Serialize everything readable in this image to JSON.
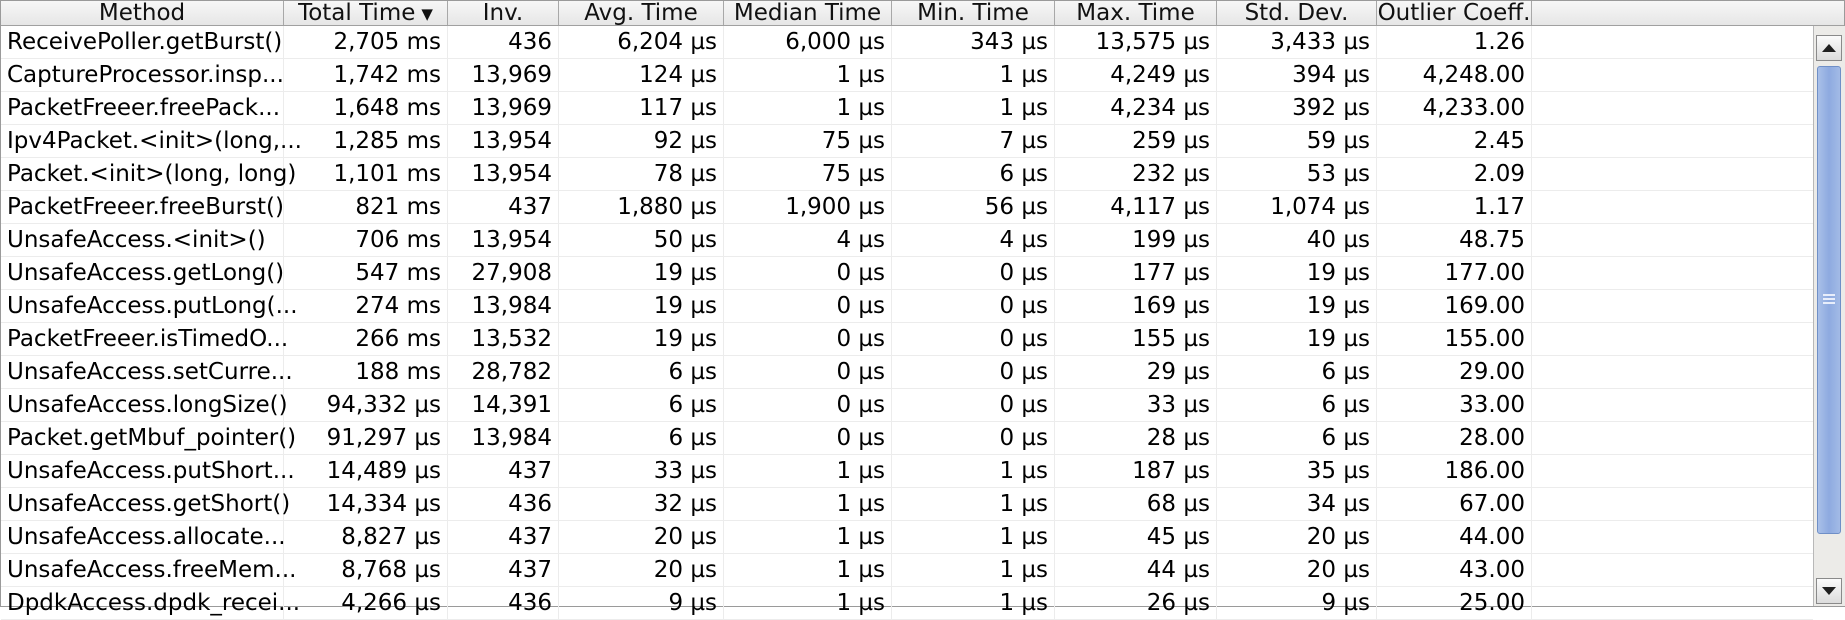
{
  "table": {
    "columns": [
      "Method",
      "Total Time",
      "Inv.",
      "Avg. Time",
      "Median Time",
      "Min. Time",
      "Max. Time",
      "Std. Dev.",
      "Outlier Coeff."
    ],
    "sorted_column": "Total Time",
    "rows": [
      [
        "ReceivePoller.getBurst()",
        "2,705 ms",
        "436",
        "6,204 µs",
        "6,000 µs",
        "343 µs",
        "13,575 µs",
        "3,433 µs",
        "1.26"
      ],
      [
        "CaptureProcessor.insp...",
        "1,742 ms",
        "13,969",
        "124 µs",
        "1 µs",
        "1 µs",
        "4,249 µs",
        "394 µs",
        "4,248.00"
      ],
      [
        "PacketFreeer.freePack...",
        "1,648 ms",
        "13,969",
        "117 µs",
        "1 µs",
        "1 µs",
        "4,234 µs",
        "392 µs",
        "4,233.00"
      ],
      [
        "Ipv4Packet.<init>(long,...",
        "1,285 ms",
        "13,954",
        "92 µs",
        "75 µs",
        "7 µs",
        "259 µs",
        "59 µs",
        "2.45"
      ],
      [
        "Packet.<init>(long, long)",
        "1,101 ms",
        "13,954",
        "78 µs",
        "75 µs",
        "6 µs",
        "232 µs",
        "53 µs",
        "2.09"
      ],
      [
        "PacketFreeer.freeBurst()",
        "821 ms",
        "437",
        "1,880 µs",
        "1,900 µs",
        "56 µs",
        "4,117 µs",
        "1,074 µs",
        "1.17"
      ],
      [
        "UnsafeAccess.<init>()",
        "706 ms",
        "13,954",
        "50 µs",
        "4 µs",
        "4 µs",
        "199 µs",
        "40 µs",
        "48.75"
      ],
      [
        "UnsafeAccess.getLong()",
        "547 ms",
        "27,908",
        "19 µs",
        "0 µs",
        "0 µs",
        "177 µs",
        "19 µs",
        "177.00"
      ],
      [
        "UnsafeAccess.putLong(...",
        "274 ms",
        "13,984",
        "19 µs",
        "0 µs",
        "0 µs",
        "169 µs",
        "19 µs",
        "169.00"
      ],
      [
        "PacketFreeer.isTimedO...",
        "266 ms",
        "13,532",
        "19 µs",
        "0 µs",
        "0 µs",
        "155 µs",
        "19 µs",
        "155.00"
      ],
      [
        "UnsafeAccess.setCurre...",
        "188 ms",
        "28,782",
        "6 µs",
        "0 µs",
        "0 µs",
        "29 µs",
        "6 µs",
        "29.00"
      ],
      [
        "UnsafeAccess.longSize()",
        "94,332 µs",
        "14,391",
        "6 µs",
        "0 µs",
        "0 µs",
        "33 µs",
        "6 µs",
        "33.00"
      ],
      [
        "Packet.getMbuf_pointer()",
        "91,297 µs",
        "13,984",
        "6 µs",
        "0 µs",
        "0 µs",
        "28 µs",
        "6 µs",
        "28.00"
      ],
      [
        "UnsafeAccess.putShort...",
        "14,489 µs",
        "437",
        "33 µs",
        "1 µs",
        "1 µs",
        "187 µs",
        "35 µs",
        "186.00"
      ],
      [
        "UnsafeAccess.getShort()",
        "14,334 µs",
        "436",
        "32 µs",
        "1 µs",
        "1 µs",
        "68 µs",
        "34 µs",
        "67.00"
      ],
      [
        "UnsafeAccess.allocate...",
        "8,827 µs",
        "437",
        "20 µs",
        "1 µs",
        "1 µs",
        "45 µs",
        "20 µs",
        "44.00"
      ],
      [
        "UnsafeAccess.freeMem...",
        "8,768 µs",
        "437",
        "20 µs",
        "1 µs",
        "1 µs",
        "44 µs",
        "20 µs",
        "43.00"
      ],
      [
        "DpdkAccess.dpdk_recei...",
        "4,266 µs",
        "436",
        "9 µs",
        "1 µs",
        "1 µs",
        "26 µs",
        "9 µs",
        "25.00"
      ]
    ]
  },
  "icons": {
    "sort": "sort-descending-icon",
    "scroll_up": "scroll-up-icon",
    "scroll_down": "scroll-down-icon"
  }
}
